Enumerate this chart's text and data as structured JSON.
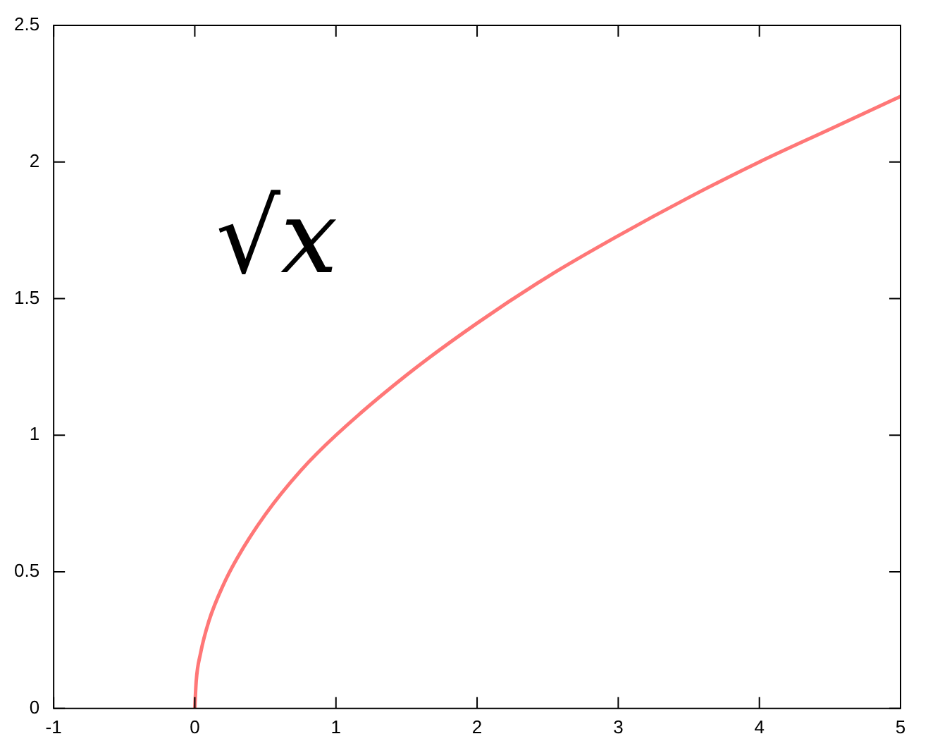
{
  "chart_data": {
    "type": "line",
    "x": [
      0,
      0.01,
      0.04,
      0.1,
      0.2,
      0.3,
      0.5,
      0.75,
      1,
      1.5,
      2,
      2.5,
      3,
      3.5,
      4,
      4.5,
      5
    ],
    "series": [
      {
        "color": "#ff7777",
        "values": [
          0,
          0.1,
          0.2,
          0.32,
          0.45,
          0.55,
          0.71,
          0.87,
          1,
          1.22,
          1.41,
          1.58,
          1.73,
          1.87,
          2,
          2.12,
          2.24
        ]
      }
    ],
    "xlim": [
      -1,
      5
    ],
    "xticks": [
      -1,
      0,
      1,
      2,
      3,
      4,
      5
    ],
    "ylim": [
      0,
      2.5
    ],
    "yticks": [
      0,
      0.5,
      1,
      1.5,
      2,
      2.5
    ],
    "annotations": [
      "√x"
    ],
    "marker": "none",
    "line_style": "solid",
    "legend": false,
    "grid": false
  }
}
